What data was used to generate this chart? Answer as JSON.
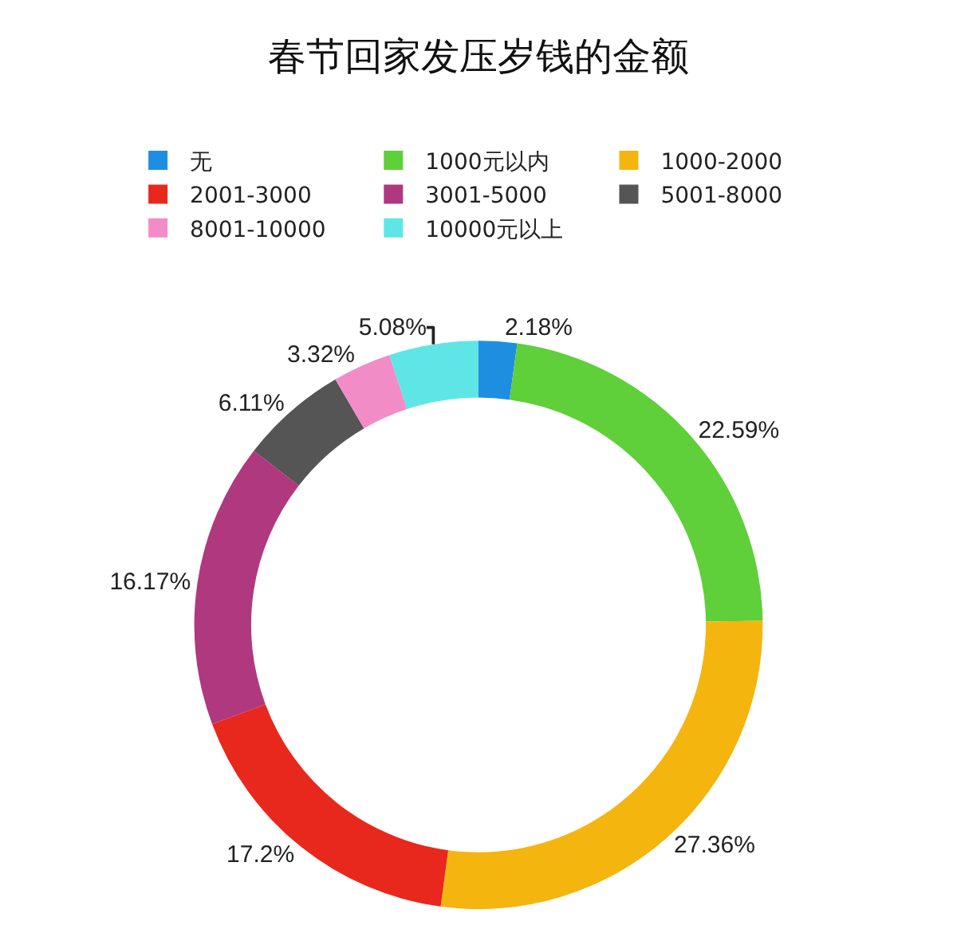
{
  "chart_data": {
    "type": "donut",
    "title": "春节回家发压岁钱的金额",
    "categories": [
      "无",
      "1000元以内",
      "1000-2000",
      "2001-3000",
      "3001-5000",
      "5001-8000",
      "8001-10000",
      "10000元以上"
    ],
    "values": [
      2.18,
      22.59,
      27.36,
      17.2,
      16.17,
      6.11,
      3.32,
      5.08
    ],
    "value_labels": [
      "2.18%",
      "22.59%",
      "27.36%",
      "17.2%",
      "16.17%",
      "6.11%",
      "3.32%",
      "5.08%"
    ],
    "colors": [
      "#1e8fe0",
      "#5fcf3a",
      "#f5b50f",
      "#e8281c",
      "#b0387e",
      "#555555",
      "#f28cc6",
      "#5ee6e6"
    ],
    "legend": "top"
  }
}
